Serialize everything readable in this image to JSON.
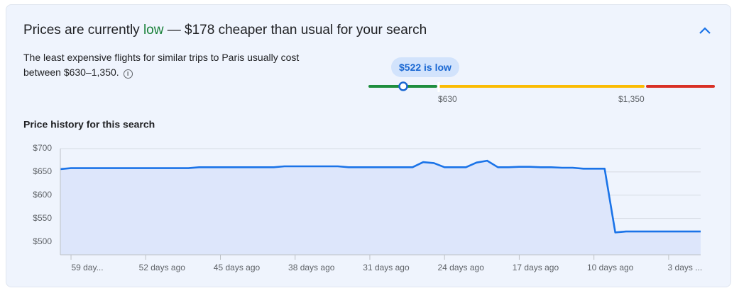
{
  "header": {
    "title_parts": [
      "Prices are currently ",
      "low",
      " — $178 cheaper than usual for your search"
    ],
    "description": "The least expensive flights for similar trips to Paris usually cost between $630–1,350.",
    "range": {
      "current_label": "$522 is low",
      "low_label": "$630",
      "high_label": "$1,350"
    }
  },
  "chart_data": {
    "type": "line",
    "title": "Price history for this search",
    "categories": [
      null,
      "59 day...",
      null,
      null,
      null,
      null,
      null,
      null,
      "52 days ago",
      null,
      null,
      null,
      null,
      null,
      null,
      "45 days ago",
      null,
      null,
      null,
      null,
      null,
      null,
      "38 days ago",
      null,
      null,
      null,
      null,
      null,
      null,
      "31 days ago",
      null,
      null,
      null,
      null,
      null,
      null,
      "24 days ago",
      null,
      null,
      null,
      null,
      null,
      null,
      "17 days ago",
      null,
      null,
      null,
      null,
      null,
      null,
      "10 days ago",
      null,
      null,
      null,
      null,
      null,
      null,
      "3 days ...",
      null,
      null,
      null
    ],
    "values": [
      656,
      658,
      658,
      658,
      658,
      658,
      658,
      658,
      658,
      658,
      658,
      658,
      658,
      660,
      660,
      660,
      660,
      660,
      660,
      660,
      660,
      662,
      662,
      662,
      662,
      662,
      662,
      660,
      660,
      660,
      660,
      660,
      660,
      660,
      671,
      669,
      660,
      660,
      660,
      670,
      674,
      660,
      660,
      661,
      661,
      660,
      660,
      659,
      659,
      657,
      657,
      657,
      520,
      522,
      522,
      522,
      522,
      522,
      522,
      522,
      522
    ],
    "color": "#1a73e8",
    "area_color": "#dde6fb",
    "ylim": [
      472,
      700
    ],
    "yticks": [
      {
        "value": 500,
        "label": "$500"
      },
      {
        "value": 550,
        "label": "$550"
      },
      {
        "value": 600,
        "label": "$600"
      },
      {
        "value": 650,
        "label": "$650"
      },
      {
        "value": 700,
        "label": "$700"
      }
    ],
    "grid": true
  }
}
